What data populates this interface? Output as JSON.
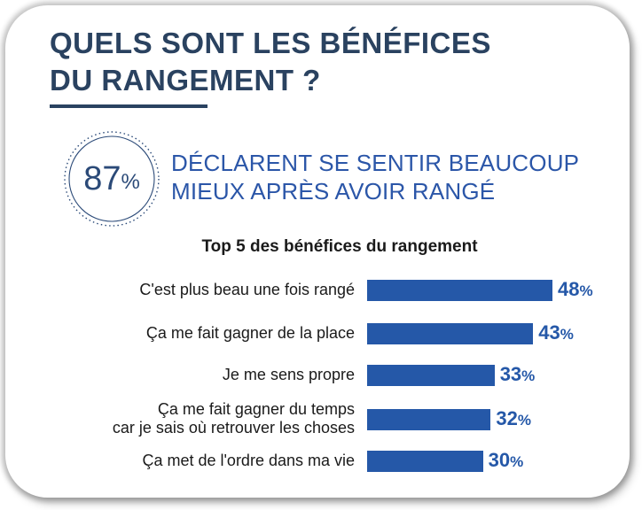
{
  "header": {
    "title_line1": "QUELS SONT LES BÉNÉFICES",
    "title_line2": "DU RANGEMENT ?"
  },
  "stat": {
    "value": "87",
    "unit": "%",
    "line1": "DÉCLARENT SE SENTIR BEAUCOUP",
    "line2": "MIEUX APRÈS AVOIR RANGÉ"
  },
  "colors": {
    "title": "#2a4260",
    "accent": "#2558a8"
  },
  "chart_data": {
    "type": "bar",
    "orientation": "horizontal",
    "title": "Top 5 des bénéfices du rangement",
    "categories": [
      "C'est plus beau une fois rangé",
      "Ça me fait gagner de la place",
      "Je me sens propre",
      "Ça me fait gagner du temps\ncar je sais où retrouver les choses",
      "Ça met de l'ordre dans ma vie"
    ],
    "values": [
      48,
      43,
      33,
      32,
      30
    ],
    "value_suffix": "%",
    "xlim": [
      0,
      50
    ],
    "grid": false
  }
}
